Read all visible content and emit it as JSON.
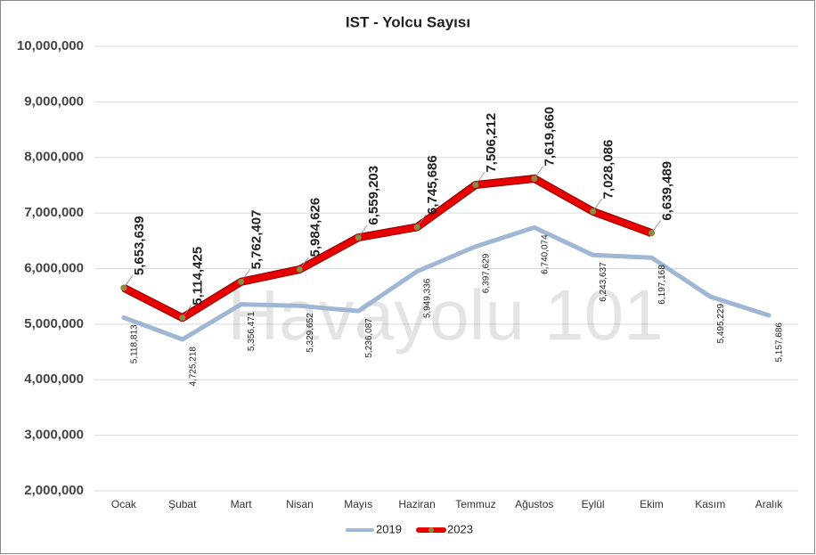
{
  "chart_data": {
    "type": "line",
    "title": "IST - Yolcu Sayısı",
    "watermark": "Havayolu 101",
    "categories": [
      "Ocak",
      "Şubat",
      "Mart",
      "Nisan",
      "Mayıs",
      "Haziran",
      "Temmuz",
      "Ağustos",
      "Eylül",
      "Ekim",
      "Kasım",
      "Aralık"
    ],
    "series": [
      {
        "name": "2019",
        "color": "#9fb7d4",
        "values": [
          5118813,
          4725218,
          5356471,
          5329652,
          5236087,
          5949336,
          6397629,
          6740074,
          6243637,
          6197168,
          5495229,
          5157686
        ],
        "value_labels": [
          "5,118,813",
          "4,725,218",
          "5,356,471",
          "5,329,652",
          "5,236,087",
          "5,949,336",
          "6,397,629",
          "6,740,074",
          "6,243,637",
          "6,197,168",
          "5,495,229",
          "5,157,686"
        ]
      },
      {
        "name": "2023",
        "color": "#e60000",
        "marker_color": "#8c8a3c",
        "values": [
          5653639,
          5114425,
          5762407,
          5984626,
          6559203,
          6745686,
          7506212,
          7619660,
          7028086,
          6639489,
          null,
          null
        ],
        "value_labels": [
          "5,653,639",
          "5,114,425",
          "5,762,407",
          "5,984,626",
          "6,559,203",
          "6,745,686",
          "7,506,212",
          "7,619,660",
          "7,028,086",
          "6,639,489",
          null,
          null
        ]
      }
    ],
    "ylim": [
      2000000,
      10000000
    ],
    "yticks": [
      {
        "value": 2000000,
        "label": "2,000,000"
      },
      {
        "value": 3000000,
        "label": "3,000,000"
      },
      {
        "value": 4000000,
        "label": "4,000,000"
      },
      {
        "value": 5000000,
        "label": "5,000,000"
      },
      {
        "value": 6000000,
        "label": "6,000,000"
      },
      {
        "value": 7000000,
        "label": "7,000,000"
      },
      {
        "value": 8000000,
        "label": "8,000,000"
      },
      {
        "value": 9000000,
        "label": "9,000,000"
      },
      {
        "value": 10000000,
        "label": "10,000,000"
      }
    ],
    "grid": true,
    "legend": "bottom"
  }
}
